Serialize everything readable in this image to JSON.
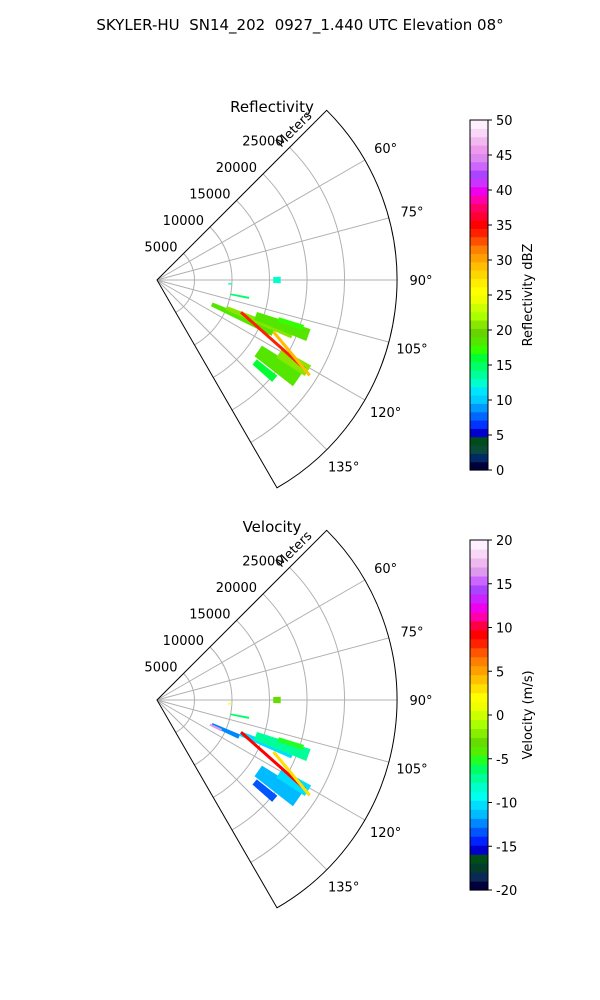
{
  "figure_title": "SKYLER-HU  SN14_202  0927_1.440 UTC Elevation 08°",
  "chart_data": [
    {
      "type": "heatmap",
      "subtype": "polar-sector-ppi",
      "title": "Reflectivity",
      "range_label": "Meters",
      "range_ticks": [
        5000,
        10000,
        15000,
        20000,
        25000
      ],
      "range_max": 32000,
      "azimuth_range": [
        45,
        150
      ],
      "azimuth_ticks": [
        60,
        75,
        90,
        105,
        120,
        135
      ],
      "azimuth_tick_labels": [
        "60°",
        "75°",
        "90°",
        "105°",
        "120°",
        "135°"
      ],
      "grid": true,
      "colorbar": {
        "label": "Reflectivity dBZ",
        "min": 0,
        "max": 50,
        "ticks": [
          0,
          5,
          10,
          15,
          20,
          25,
          30,
          35,
          40,
          45,
          50
        ],
        "colors": [
          "#00003c",
          "#002a66",
          "#0a4a3a",
          "#004d1a",
          "#0000cc",
          "#0033ff",
          "#0066ff",
          "#0099ff",
          "#00ccff",
          "#00e5ff",
          "#00ffcc",
          "#00ff99",
          "#00ff66",
          "#00ff33",
          "#33ff00",
          "#55e600",
          "#66d400",
          "#88e600",
          "#aaff00",
          "#ccff00",
          "#eeff00",
          "#ffff00",
          "#ffee00",
          "#ffd700",
          "#ffbf00",
          "#ff9f00",
          "#ff7f00",
          "#ff5000",
          "#ff2000",
          "#ff0000",
          "#ff0033",
          "#ff0066",
          "#ff00aa",
          "#ee00ee",
          "#cc33ff",
          "#aa44ff",
          "#cc66ff",
          "#dd88ee",
          "#ee99ee",
          "#f2b8f0",
          "#f8d8f6",
          "#fff0ff"
        ]
      },
      "cells": [
        {
          "az": 114,
          "r": [
            8000,
            17000
          ],
          "daz": 4.0,
          "v": 18
        },
        {
          "az": 112,
          "r": [
            10000,
            19500
          ],
          "daz": 3.0,
          "v": 21
        },
        {
          "az": 110,
          "r": [
            14000,
            21500
          ],
          "daz": 4.5,
          "v": 19
        },
        {
          "az": 108,
          "r": [
            17000,
            20500
          ],
          "daz": 2.0,
          "v": 17
        },
        {
          "az": 125,
          "r": [
            16500,
            23000
          ],
          "daz": 6.0,
          "v": 19
        },
        {
          "az": 121,
          "r": [
            19000,
            23500
          ],
          "daz": 4.0,
          "v": 21
        },
        {
          "az": 130,
          "r": [
            17000,
            20500
          ],
          "daz": 3.0,
          "v": 16
        },
        {
          "az": 101,
          "r": [
            10000,
            12500
          ],
          "daz": 1.2,
          "v": 15
        },
        {
          "az": 90,
          "r": [
            15500,
            16500
          ],
          "daz": 3.0,
          "v": 13
        },
        {
          "az": 93,
          "r": [
            9500,
            10000
          ],
          "daz": 1.0,
          "v": 14
        }
      ],
      "streaks": [
        {
          "az": [
            111,
            121
          ],
          "r": [
            12000,
            23000
          ],
          "v": 34
        },
        {
          "az": [
            114,
            122
          ],
          "r": [
            17000,
            24000
          ],
          "v": 29
        }
      ]
    },
    {
      "type": "heatmap",
      "subtype": "polar-sector-ppi",
      "title": "Velocity",
      "range_label": "Meters",
      "range_ticks": [
        5000,
        10000,
        15000,
        20000,
        25000
      ],
      "range_max": 32000,
      "azimuth_range": [
        45,
        150
      ],
      "azimuth_ticks": [
        60,
        75,
        90,
        105,
        120,
        135
      ],
      "azimuth_tick_labels": [
        "60°",
        "75°",
        "90°",
        "105°",
        "120°",
        "135°"
      ],
      "grid": true,
      "colorbar": {
        "label": "Velocity (m/s)",
        "min": -20,
        "max": 20,
        "ticks": [
          -20,
          -15,
          -10,
          -5,
          0,
          5,
          10,
          15,
          20
        ],
        "colors": [
          "#00003c",
          "#0a2a55",
          "#003d2a",
          "#004d1a",
          "#0000cc",
          "#0022ff",
          "#0055ff",
          "#0088ff",
          "#00bbff",
          "#00ddff",
          "#00ffee",
          "#00ffcc",
          "#00ff99",
          "#00ff66",
          "#22ff22",
          "#55ee00",
          "#66dd00",
          "#88ee00",
          "#aaff00",
          "#ccff00",
          "#eeff00",
          "#ffff00",
          "#ffe000",
          "#ffc000",
          "#ffa000",
          "#ff8000",
          "#ff5500",
          "#ff2200",
          "#ff0000",
          "#ff0044",
          "#ff00aa",
          "#ee00ee",
          "#cc22ff",
          "#aa44ff",
          "#cc66ff",
          "#dd99ee",
          "#eeb8f0",
          "#f8d8f6",
          "#fff0ff"
        ]
      },
      "cells": [
        {
          "az": 114,
          "r": [
            8000,
            12000
          ],
          "daz": 3.0,
          "v": -12
        },
        {
          "az": 115,
          "r": [
            7800,
            9500
          ],
          "daz": 2.0,
          "v": 16
        },
        {
          "az": 112,
          "r": [
            12000,
            19500
          ],
          "daz": 3.0,
          "v": -10
        },
        {
          "az": 110,
          "r": [
            14000,
            21500
          ],
          "daz": 4.5,
          "v": -7
        },
        {
          "az": 108,
          "r": [
            17000,
            20500
          ],
          "daz": 2.0,
          "v": -5
        },
        {
          "az": 125,
          "r": [
            16500,
            23000
          ],
          "daz": 6.0,
          "v": -11
        },
        {
          "az": 121,
          "r": [
            19000,
            23500
          ],
          "daz": 4.0,
          "v": -10
        },
        {
          "az": 130,
          "r": [
            17000,
            20500
          ],
          "daz": 3.0,
          "v": -13
        },
        {
          "az": 101,
          "r": [
            10000,
            12500
          ],
          "daz": 1.2,
          "v": -6
        },
        {
          "az": 90,
          "r": [
            15500,
            16500
          ],
          "daz": 3.0,
          "v": -3
        },
        {
          "az": 93,
          "r": [
            9500,
            10000
          ],
          "daz": 1.0,
          "v": 2
        }
      ],
      "streaks": [
        {
          "az": [
            111,
            121
          ],
          "r": [
            12000,
            23000
          ],
          "v": 9
        },
        {
          "az": [
            114,
            122
          ],
          "r": [
            17000,
            24000
          ],
          "v": 3
        }
      ]
    }
  ]
}
